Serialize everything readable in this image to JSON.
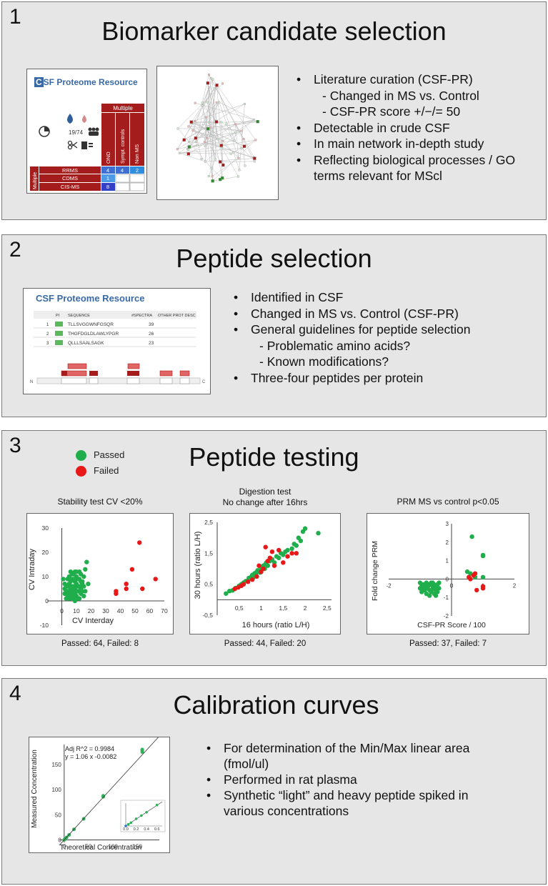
{
  "panel1": {
    "number": "1",
    "title": "Biomarker candidate selection",
    "csf_logo_c": "C",
    "csf_logo_rest": "SF Proteome Resource",
    "icon_count": "19/74",
    "matrix": {
      "top_header": "Multiple",
      "col_headers": [
        "OND",
        "Sympt. controls",
        "Non MS"
      ],
      "row_group": "Multiple",
      "rows": [
        {
          "label": "RRMS",
          "values": [
            "4",
            "4",
            "2"
          ]
        },
        {
          "label": "CDMS",
          "values": [
            "1",
            "",
            ""
          ]
        },
        {
          "label": "CIS-MS",
          "values": [
            "8",
            "",
            ""
          ]
        }
      ]
    },
    "bullets": [
      {
        "text": "Literature curation (CSF-PR)",
        "sub": false
      },
      {
        "text": "- Changed in MS vs. Control",
        "sub": true
      },
      {
        "text": "- CSF-PR score +/−/= 50",
        "sub": true
      },
      {
        "text": "Detectable in crude CSF",
        "sub": false
      },
      {
        "text": "In main network in-depth study",
        "sub": false
      },
      {
        "text": "Reflecting biological processes / GO terms relevant for MScl",
        "sub": false
      }
    ]
  },
  "panel2": {
    "number": "2",
    "title": "Peptide selection",
    "resource_title": "CSF Proteome Resource",
    "table_headers": [
      "PI",
      "SEQUENCE",
      "#SPECTRA",
      "OTHER PROT DESC"
    ],
    "table_rows": [
      {
        "n": "1",
        "seq": "TLLSVGGWNFGSQR",
        "spectra": "39"
      },
      {
        "n": "2",
        "seq": "THGFDGLDLAWLYPGR",
        "spectra": "26"
      },
      {
        "n": "3",
        "seq": "QLLLSAALSAGK",
        "spectra": "23"
      }
    ],
    "n_label": "N",
    "c_label": "C",
    "bullets": [
      {
        "text": "Identified in CSF",
        "sub": false
      },
      {
        "text": "Changed in MS vs. Control (CSF-PR)",
        "sub": false
      },
      {
        "text": "General guidelines for peptide selection",
        "sub": false
      },
      {
        "text": "- Problematic amino acids?",
        "sub": true
      },
      {
        "text": "- Known modifications?",
        "sub": true
      },
      {
        "text": "Three-four peptides per protein",
        "sub": false
      }
    ]
  },
  "panel3": {
    "number": "3",
    "title": "Peptide testing",
    "legend": [
      {
        "label": "Passed",
        "color": "#1fae4b"
      },
      {
        "label": "Failed",
        "color": "#e81818"
      }
    ],
    "stability": {
      "heading": "Stability test CV <20%",
      "caption": "Passed: 64, Failed: 8"
    },
    "digestion": {
      "heading_line1": "Digestion test",
      "heading_line2": "No change after 16hrs",
      "caption": "Passed: 44, Failed: 20"
    },
    "prm": {
      "heading": "PRM MS vs control p<0.05",
      "caption": "Passed: 37, Failed: 7"
    }
  },
  "panel4": {
    "number": "4",
    "title": "Calibration curves",
    "eq_line1": "Adj R^2 =  0.9984",
    "eq_line2": "y =  1.06 x  -0.0082",
    "bullets": [
      {
        "text": "For determination of the Min/Max linear area (fmol/ul)",
        "sub": false
      },
      {
        "text": "Performed in rat plasma",
        "sub": false
      },
      {
        "text": "Synthetic “light” and heavy peptide spiked in various concentrations",
        "sub": false
      }
    ]
  },
  "chart_data": [
    {
      "type": "scatter",
      "title": "Stability test CV <20%",
      "xlabel": "CV Interday",
      "ylabel": "CV Intraday",
      "xlim": [
        -10,
        70
      ],
      "ylim": [
        -10,
        30
      ],
      "x_ticks": [
        "0",
        "10",
        "20",
        "30",
        "40",
        "50",
        "60",
        "70"
      ],
      "y_ticks": [
        "30",
        "20",
        "10",
        "0",
        "-10"
      ],
      "series": [
        {
          "name": "Passed",
          "color": "#1fae4b",
          "points": [
            [
              1,
              9
            ],
            [
              2,
              5
            ],
            [
              3,
              3
            ],
            [
              3,
              6
            ],
            [
              4,
              2
            ],
            [
              4,
              4
            ],
            [
              5,
              1
            ],
            [
              5,
              7
            ],
            [
              5,
              10
            ],
            [
              6,
              3
            ],
            [
              6,
              5
            ],
            [
              6,
              8
            ],
            [
              7,
              2
            ],
            [
              7,
              4
            ],
            [
              7,
              11
            ],
            [
              8,
              1
            ],
            [
              8,
              6
            ],
            [
              8,
              9
            ],
            [
              9,
              3
            ],
            [
              9,
              5
            ],
            [
              9,
              12
            ],
            [
              10,
              2
            ],
            [
              10,
              7
            ],
            [
              10,
              10
            ],
            [
              11,
              4
            ],
            [
              11,
              6
            ],
            [
              12,
              1
            ],
            [
              12,
              9
            ],
            [
              12,
              12
            ],
            [
              13,
              3
            ],
            [
              13,
              5
            ],
            [
              14,
              7
            ],
            [
              15,
              2
            ],
            [
              15,
              10
            ],
            [
              16,
              4
            ],
            [
              16,
              13
            ],
            [
              17,
              16
            ],
            [
              18,
              7
            ],
            [
              6,
              12
            ],
            [
              4,
              9
            ],
            [
              3,
              1
            ],
            [
              2,
              3
            ],
            [
              9,
              0
            ],
            [
              11,
              1
            ],
            [
              13,
              11
            ],
            [
              14,
              8
            ],
            [
              7,
              6
            ],
            [
              8,
              3
            ],
            [
              10,
              4
            ],
            [
              12,
              6
            ],
            [
              5,
              3
            ],
            [
              6,
              1
            ],
            [
              11,
              9
            ],
            [
              9,
              8
            ],
            [
              7,
              9
            ],
            [
              4,
              6
            ],
            [
              15,
              6
            ],
            [
              13,
              8
            ],
            [
              8,
              11
            ],
            [
              10,
              12
            ],
            [
              3,
              4
            ],
            [
              2,
              7
            ],
            [
              14,
              4
            ],
            [
              6,
              6
            ]
          ]
        },
        {
          "name": "Failed",
          "color": "#e81818",
          "points": [
            [
              37,
              3
            ],
            [
              37,
              4
            ],
            [
              44,
              5
            ],
            [
              44,
              7
            ],
            [
              48,
              13
            ],
            [
              53,
              24
            ],
            [
              55,
              5
            ],
            [
              64,
              9
            ]
          ]
        }
      ]
    },
    {
      "type": "scatter",
      "title": "Digestion test No change after 16hrs",
      "xlabel": "16 hours (ratio L/H)",
      "ylabel": "30 hours (ratio L/H)",
      "xlim": [
        0,
        2.6
      ],
      "ylim": [
        -0.5,
        2.5
      ],
      "x_ticks": [
        "0,5",
        "1",
        "1,5",
        "2",
        "2,5"
      ],
      "y_ticks": [
        "2,5",
        "1,5",
        "0,5",
        "-0,5"
      ],
      "series": [
        {
          "name": "Passed",
          "color": "#1fae4b",
          "points": [
            [
              0.2,
              0.2
            ],
            [
              0.28,
              0.28
            ],
            [
              0.35,
              0.3
            ],
            [
              0.42,
              0.38
            ],
            [
              0.5,
              0.45
            ],
            [
              0.55,
              0.5
            ],
            [
              0.6,
              0.55
            ],
            [
              0.65,
              0.6
            ],
            [
              0.7,
              0.62
            ],
            [
              0.72,
              0.7
            ],
            [
              0.75,
              0.68
            ],
            [
              0.78,
              0.75
            ],
            [
              0.8,
              0.8
            ],
            [
              0.82,
              0.72
            ],
            [
              0.85,
              0.85
            ],
            [
              0.88,
              0.82
            ],
            [
              0.9,
              0.9
            ],
            [
              0.92,
              0.95
            ],
            [
              0.95,
              0.92
            ],
            [
              1.0,
              1.0
            ],
            [
              1.02,
              1.05
            ],
            [
              1.05,
              1.1
            ],
            [
              1.08,
              1.0
            ],
            [
              1.1,
              1.15
            ],
            [
              1.12,
              1.2
            ],
            [
              1.15,
              1.1
            ],
            [
              1.2,
              1.25
            ],
            [
              1.25,
              1.3
            ],
            [
              1.3,
              1.2
            ],
            [
              1.35,
              1.4
            ],
            [
              1.4,
              1.35
            ],
            [
              1.45,
              1.5
            ],
            [
              1.5,
              1.45
            ],
            [
              1.55,
              1.55
            ],
            [
              1.6,
              1.6
            ],
            [
              1.7,
              1.65
            ],
            [
              1.75,
              1.8
            ],
            [
              1.8,
              1.75
            ],
            [
              1.85,
              2.0
            ],
            [
              1.9,
              1.9
            ],
            [
              1.95,
              2.2
            ],
            [
              2.0,
              2.3
            ],
            [
              2.3,
              2.15
            ],
            [
              0.98,
              0.88
            ]
          ]
        },
        {
          "name": "Failed",
          "color": "#e81818",
          "points": [
            [
              0.4,
              0.35
            ],
            [
              0.48,
              0.4
            ],
            [
              0.6,
              0.5
            ],
            [
              0.7,
              0.58
            ],
            [
              0.9,
              0.75
            ],
            [
              1.0,
              0.9
            ],
            [
              1.05,
              1.0
            ],
            [
              1.1,
              1.7
            ],
            [
              1.2,
              1.35
            ],
            [
              1.4,
              1.6
            ],
            [
              1.5,
              1.2
            ],
            [
              1.7,
              1.5
            ],
            [
              1.8,
              1.5
            ],
            [
              0.95,
              1.1
            ],
            [
              1.3,
              1.1
            ],
            [
              1.15,
              1.25
            ],
            [
              0.8,
              0.65
            ],
            [
              1.25,
              1.55
            ],
            [
              0.55,
              0.45
            ],
            [
              1.6,
              1.4
            ]
          ]
        }
      ]
    },
    {
      "type": "scatter",
      "title": "PRM MS vs control p<0.05",
      "xlabel": "CSF-PR Score / 100",
      "ylabel": "Fold change PRM",
      "xlim": [
        -2,
        2
      ],
      "ylim": [
        -2,
        3
      ],
      "x_ticks": [
        "-2",
        "0",
        "1",
        "2"
      ],
      "y_ticks": [
        "3",
        "2",
        "1",
        "0",
        "-1",
        "-2"
      ],
      "series": [
        {
          "name": "Passed",
          "color": "#1fae4b",
          "points": [
            [
              -1.0,
              -0.2
            ],
            [
              -1.0,
              -0.5
            ],
            [
              -0.95,
              -0.7
            ],
            [
              -0.9,
              -0.4
            ],
            [
              -0.9,
              -0.3
            ],
            [
              -0.85,
              -0.6
            ],
            [
              -0.8,
              -0.2
            ],
            [
              -0.8,
              -0.5
            ],
            [
              -0.8,
              -0.8
            ],
            [
              -0.75,
              -0.4
            ],
            [
              -0.7,
              -0.3
            ],
            [
              -0.7,
              -0.6
            ],
            [
              -0.65,
              -0.2
            ],
            [
              -0.65,
              -0.7
            ],
            [
              -0.6,
              -0.4
            ],
            [
              -0.6,
              -0.55
            ],
            [
              -0.55,
              -0.3
            ],
            [
              -0.55,
              -0.8
            ],
            [
              -0.5,
              -0.45
            ],
            [
              -0.5,
              -0.6
            ],
            [
              -0.5,
              -0.9
            ],
            [
              -0.45,
              -0.3
            ],
            [
              -0.45,
              -0.7
            ],
            [
              -0.4,
              -0.2
            ],
            [
              -0.4,
              -0.5
            ],
            [
              -0.7,
              -0.9
            ],
            [
              -0.9,
              -0.6
            ],
            [
              0.5,
              0.4
            ],
            [
              0.6,
              0.3
            ],
            [
              0.65,
              2.3
            ],
            [
              0.75,
              0.1
            ],
            [
              1.0,
              1.3
            ],
            [
              1.0,
              1.25
            ],
            [
              1.0,
              0.1
            ],
            [
              -0.85,
              -0.3
            ],
            [
              -0.6,
              -0.2
            ],
            [
              -0.95,
              -0.4
            ]
          ]
        },
        {
          "name": "Failed",
          "color": "#e81818",
          "points": [
            [
              0.55,
              0.1
            ],
            [
              0.7,
              0.2
            ],
            [
              0.75,
              0.3
            ],
            [
              0.8,
              -0.6
            ],
            [
              1.0,
              -0.4
            ],
            [
              1.0,
              -0.5
            ],
            [
              0.6,
              0.0
            ]
          ]
        }
      ]
    },
    {
      "type": "scatter",
      "title": "",
      "xlabel": "Theoretical Concentration",
      "ylabel": "Measured Concentration",
      "xlim": [
        -10,
        195
      ],
      "ylim": [
        -5,
        190
      ],
      "x_ticks": [
        "0",
        "50",
        "100",
        "150"
      ],
      "y_ticks": [
        "0",
        "50",
        "100",
        "150"
      ],
      "fit": {
        "slope": 1.06,
        "intercept": -0.0082
      },
      "series": [
        {
          "name": "",
          "color": "#2fb35a",
          "points": [
            [
              0,
              0
            ],
            [
              1,
              1
            ],
            [
              2,
              2
            ],
            [
              5,
              5
            ],
            [
              10,
              10
            ],
            [
              20,
              21
            ],
            [
              40,
              42
            ],
            [
              80,
              86
            ],
            [
              80,
              88
            ],
            [
              160,
              175
            ],
            [
              160,
              178
            ],
            [
              160,
              180
            ]
          ]
        }
      ],
      "inset": {
        "x_ticks": [
          "0.0",
          "0.2",
          "0.4",
          "0.6"
        ],
        "points": [
          [
            0.0,
            0.0
          ],
          [
            0.05,
            0.05
          ],
          [
            0.1,
            0.1
          ],
          [
            0.2,
            0.22
          ],
          [
            0.3,
            0.32
          ],
          [
            0.4,
            0.42
          ],
          [
            0.6,
            0.64
          ]
        ]
      }
    }
  ]
}
